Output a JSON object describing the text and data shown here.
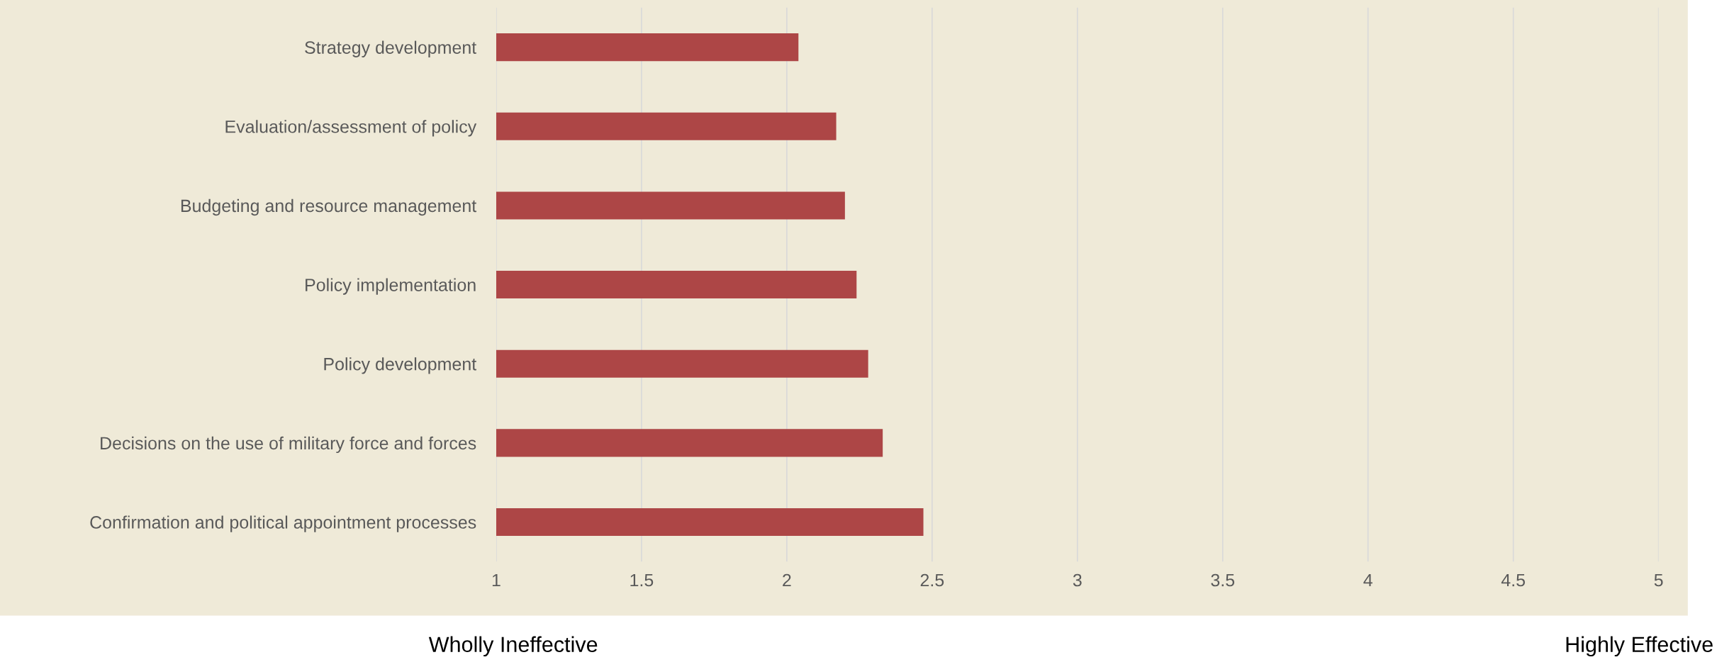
{
  "chart_data": {
    "type": "bar",
    "orientation": "horizontal",
    "categories": [
      "Strategy development",
      "Evaluation/assessment of policy",
      "Budgeting and resource management",
      "Policy implementation",
      "Policy development",
      "Decisions on the use of military force and forces",
      "Confirmation and political appointment processes"
    ],
    "values": [
      2.04,
      2.17,
      2.2,
      2.24,
      2.28,
      2.33,
      2.47
    ],
    "color": "#ad4646",
    "xlim": [
      1,
      5
    ],
    "xticks": [
      1,
      1.5,
      2,
      2.5,
      3,
      3.5,
      4,
      4.5,
      5
    ],
    "grid": "x",
    "legend": false,
    "annotations": [
      "Wholly Ineffective",
      "Highly Effective"
    ]
  }
}
